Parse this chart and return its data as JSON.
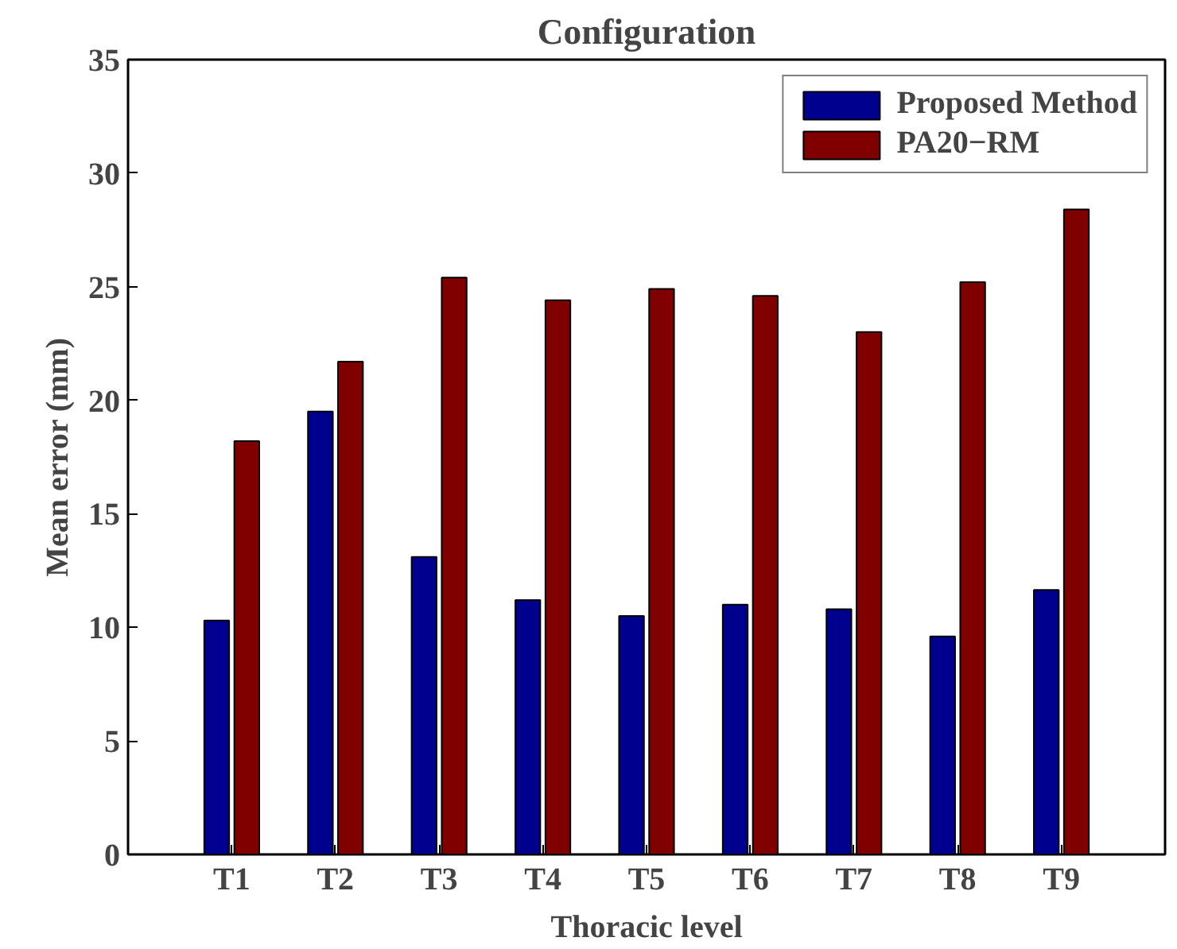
{
  "chart_data": {
    "type": "bar",
    "title": "Configuration",
    "xlabel": "Thoracic level",
    "ylabel": "Mean error (mm)",
    "categories": [
      "T1",
      "T2",
      "T3",
      "T4",
      "T5",
      "T6",
      "T7",
      "T8",
      "T9"
    ],
    "series": [
      {
        "name": "Proposed Method",
        "color": "#00008f",
        "values": [
          10.3,
          19.5,
          13.1,
          11.2,
          10.5,
          11.0,
          10.8,
          9.6,
          11.65
        ]
      },
      {
        "name": "PA20−RM",
        "color": "#800000",
        "values": [
          18.2,
          21.7,
          25.4,
          24.4,
          24.9,
          24.6,
          23.0,
          25.2,
          28.4
        ]
      }
    ],
    "ylim": [
      0,
      35
    ],
    "yticks": [
      0,
      5,
      10,
      15,
      20,
      25,
      30,
      35
    ],
    "grid": false,
    "legend": "top right"
  }
}
